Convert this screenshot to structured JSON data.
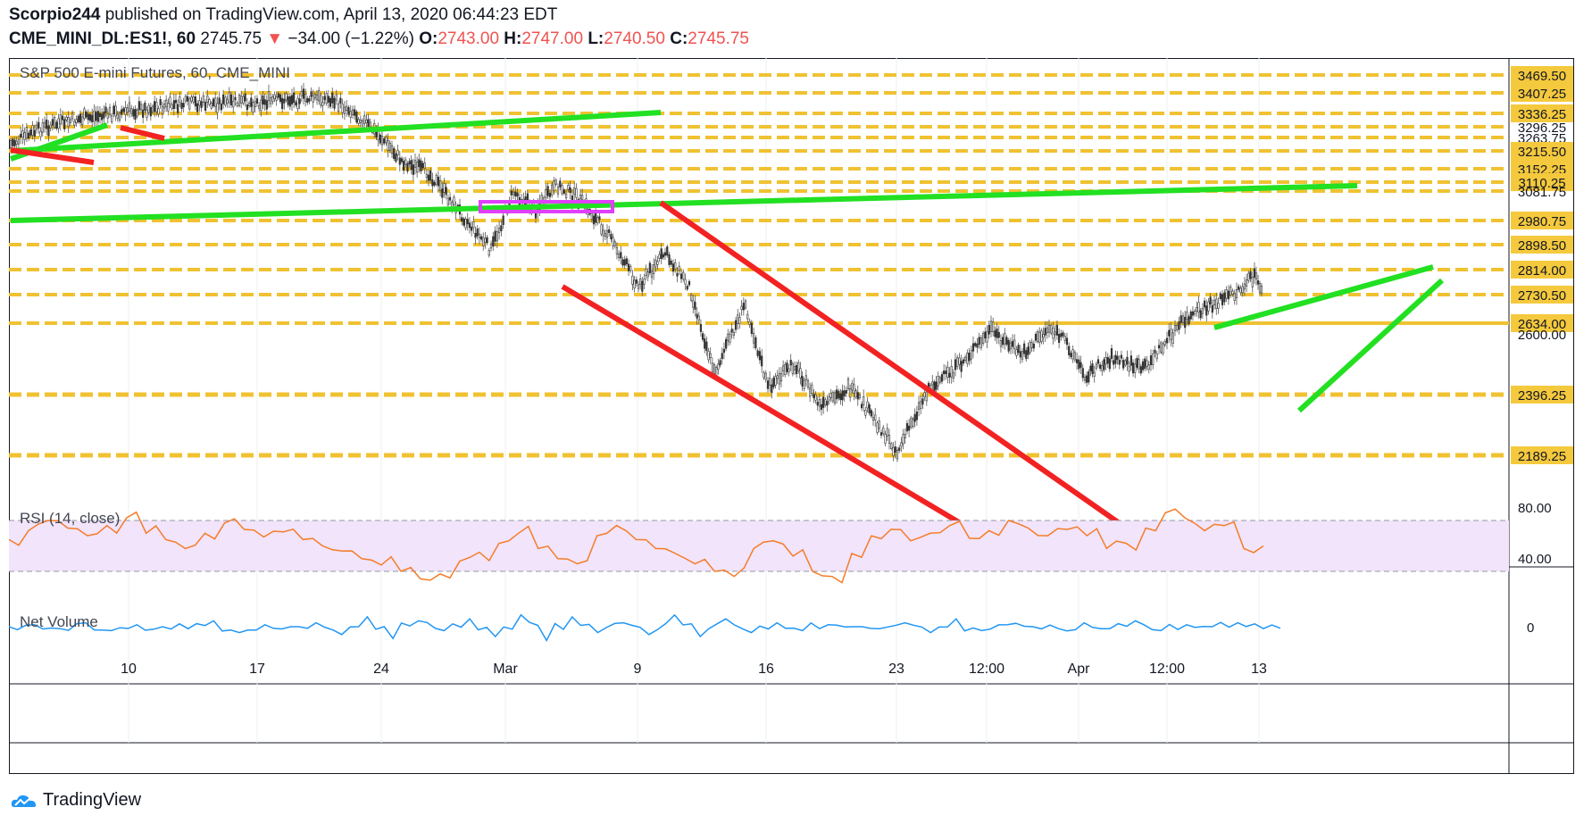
{
  "header": {
    "publisher": "Scorpio244",
    "published_text": "published on TradingView.com, April 13, 2020 06:44:23 EDT",
    "symbol": "CME_MINI_DL:ES1!, 60",
    "last": "2745.75",
    "change": "−34.00 (−1.22%)",
    "o_label": "O:",
    "o_value": "2743.00",
    "h_label": "H:",
    "h_value": "2747.00",
    "l_label": "L:",
    "l_value": "2740.50",
    "c_label": "C:",
    "c_value": "2745.75"
  },
  "chart_title": "S&P 500 E-mini Futures, 60, CME_MINI",
  "rsi_label": "RSI (14, close)",
  "netvol_label": "Net Volume",
  "brand": "TradingView",
  "colors": {
    "support_line": "#f0c232",
    "green_trend": "#22e022",
    "red_trend": "#f22222",
    "magenta_box": "#e040fb",
    "rsi_line": "#f57c28",
    "rsi_band": "#f1e4fb",
    "netvol_line": "#2196f3",
    "label_bg": "#f5c93d"
  },
  "chart_data": [
    {
      "type": "candlestick",
      "title": "S&P 500 E-mini Futures, 60, CME_MINI",
      "x_ticks": [
        "10",
        "17",
        "24",
        "Mar",
        "9",
        "16",
        "23",
        "12:00",
        "Apr",
        "12:00",
        "13"
      ],
      "y_tick_labels": [
        "3469.50",
        "3407.25",
        "3336.25",
        "3296.25",
        "3263.75",
        "3215.50",
        "3152.25",
        "3110.25",
        "3081.75",
        "2980.75",
        "2898.50",
        "2814.00",
        "2730.50",
        "2634.00",
        "2600.00",
        "2396.25",
        "2189.25"
      ],
      "horizontal_levels": [
        3469.5,
        3407.25,
        3336.25,
        3296.25,
        3263.75,
        3215.5,
        3152.25,
        3110.25,
        3081.75,
        2980.75,
        2898.5,
        2814.0,
        2730.5,
        2634.0,
        2396.25,
        2189.25
      ],
      "price_path": [
        [
          "Feb 3",
          3240
        ],
        [
          "Feb 5",
          3295
        ],
        [
          "Feb 7",
          3320
        ],
        [
          "Feb 10",
          3345
        ],
        [
          "Feb 13",
          3370
        ],
        [
          "Feb 17",
          3375
        ],
        [
          "Feb 19",
          3390
        ],
        [
          "Feb 20",
          3385
        ],
        [
          "Feb 21",
          3345
        ],
        [
          "Feb 24",
          3260
        ],
        [
          "Feb 25",
          3180
        ],
        [
          "Feb 26",
          3140
        ],
        [
          "Feb 27",
          3010
        ],
        [
          "Feb 28",
          2880
        ],
        [
          "Mar 2",
          3080
        ],
        [
          "Mar 3",
          3020
        ],
        [
          "Mar 4",
          3100
        ],
        [
          "Mar 5",
          3050
        ],
        [
          "Mar 6",
          2940
        ],
        [
          "Mar 9",
          2760
        ],
        [
          "Mar 10",
          2870
        ],
        [
          "Mar 11",
          2760
        ],
        [
          "Mar 12",
          2470
        ],
        [
          "Mar 13",
          2700
        ],
        [
          "Mar 16",
          2420
        ],
        [
          "Mar 17",
          2500
        ],
        [
          "Mar 18",
          2350
        ],
        [
          "Mar 19",
          2420
        ],
        [
          "Mar 20",
          2320
        ],
        [
          "Mar 23",
          2200
        ],
        [
          "Mar 24",
          2420
        ],
        [
          "Mar 25",
          2480
        ],
        [
          "Mar 26",
          2610
        ],
        [
          "Mar 27",
          2530
        ],
        [
          "Mar 30",
          2620
        ],
        [
          "Mar 31",
          2570
        ],
        [
          "Apr 1",
          2460
        ],
        [
          "Apr 2",
          2520
        ],
        [
          "Apr 3",
          2480
        ],
        [
          "Apr 6",
          2640
        ],
        [
          "Apr 7",
          2700
        ],
        [
          "Apr 8",
          2740
        ],
        [
          "Apr 9",
          2790
        ],
        [
          "Apr 13",
          2745.75
        ]
      ]
    },
    {
      "type": "line",
      "title": "RSI (14, close)",
      "y_ticks": [
        "80.00",
        "40.00"
      ],
      "bands": [
        30,
        70
      ],
      "series": [
        {
          "values": [
            55,
            62,
            70,
            64,
            58,
            66,
            72,
            60,
            55,
            48,
            60,
            68,
            63,
            57,
            61,
            55,
            50,
            46,
            40,
            35,
            30,
            24,
            28,
            38,
            45,
            52,
            60,
            48,
            40,
            36,
            58,
            66,
            55,
            48,
            44,
            36,
            30,
            26,
            48,
            54,
            42,
            30,
            26,
            44,
            58,
            63,
            54,
            60,
            66,
            56,
            62,
            70,
            64,
            58,
            63,
            58,
            48,
            52,
            64,
            76,
            72,
            62,
            66,
            48,
            50
          ]
        }
      ]
    },
    {
      "type": "line",
      "title": "Net Volume",
      "y_ticks": [
        "0"
      ],
      "series": [
        {
          "values": [
            0,
            1,
            -1,
            2,
            -2,
            1,
            0,
            -1,
            3,
            -3,
            1,
            0,
            2,
            -4,
            5,
            -6,
            3,
            -2,
            4,
            -5,
            6,
            -7,
            5,
            -3,
            2,
            -4,
            6,
            -5,
            4,
            -3,
            2,
            -2,
            1,
            0,
            -1,
            2,
            -3,
            4,
            -2,
            1,
            0,
            -1,
            2,
            -1,
            3,
            -2,
            1,
            0,
            2,
            -1
          ]
        }
      ]
    }
  ]
}
